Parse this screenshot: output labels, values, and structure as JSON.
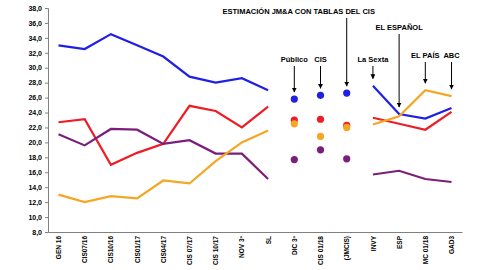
{
  "chart_data": {
    "type": "line",
    "categories": [
      "GEN 16",
      "CIS07/16",
      "CIS10/16",
      "CIS01/17",
      "CIS04/17",
      "CIS 07/17",
      "CIS 10/17",
      "NOV 3º",
      "SL",
      "DIC 3º",
      "CIS 01/18",
      "(JMCIS)",
      "INVY",
      "ESP",
      "MC 01/18",
      "GAD3"
    ],
    "ylim": [
      8,
      38
    ],
    "yticks": [
      {
        "value": 8,
        "label": "8,0"
      },
      {
        "value": 10,
        "label": "10,0"
      },
      {
        "value": 12,
        "label": "12,0"
      },
      {
        "value": 14,
        "label": "14,0"
      },
      {
        "value": 16,
        "label": "16,0"
      },
      {
        "value": 18,
        "label": "18,0"
      },
      {
        "value": 20,
        "label": "20,0"
      },
      {
        "value": 22,
        "label": "22,0"
      },
      {
        "value": 24,
        "label": "24,0"
      },
      {
        "value": 26,
        "label": "26,0"
      },
      {
        "value": 28,
        "label": "28,0"
      },
      {
        "value": 30,
        "label": "30,0"
      },
      {
        "value": 32,
        "label": "32,0"
      },
      {
        "value": 34,
        "label": "34,0"
      },
      {
        "value": 36,
        "label": "36,0"
      },
      {
        "value": 38,
        "label": "38,0"
      }
    ],
    "series": [
      {
        "color": "#1f1fe6",
        "values": [
          33.0,
          32.5,
          34.5,
          33.0,
          31.5,
          28.8,
          28.0,
          28.6,
          27.0,
          null,
          null,
          null,
          27.6,
          23.8,
          23.2,
          24.6
        ]
      },
      {
        "color": "#ee1c25",
        "values": [
          22.7,
          23.1,
          17.0,
          18.6,
          19.8,
          24.9,
          24.2,
          22.0,
          24.8,
          null,
          null,
          null,
          23.3,
          22.5,
          21.7,
          24.1
        ]
      },
      {
        "color": "#7b1e7a",
        "values": [
          21.1,
          19.6,
          21.8,
          21.7,
          19.8,
          20.3,
          18.5,
          18.5,
          15.1,
          null,
          null,
          null,
          15.7,
          16.2,
          15.1,
          14.7
        ]
      },
      {
        "color": "#f5a623",
        "values": [
          13.0,
          12.0,
          12.8,
          12.5,
          14.9,
          14.5,
          17.5,
          20.0,
          21.6,
          null,
          null,
          null,
          22.4,
          23.5,
          27.0,
          26.2
        ]
      },
      {
        "type": "scatter",
        "marker": "circle",
        "color": "#1f1fe6",
        "values": [
          null,
          null,
          null,
          null,
          null,
          null,
          null,
          null,
          null,
          25.8,
          26.3,
          26.6,
          null,
          null,
          null,
          null
        ]
      },
      {
        "type": "scatter",
        "marker": "circle",
        "color": "#ee1c25",
        "values": [
          null,
          null,
          null,
          null,
          null,
          null,
          null,
          null,
          null,
          23.0,
          23.1,
          22.3,
          null,
          null,
          null,
          null
        ]
      },
      {
        "type": "scatter",
        "marker": "circle",
        "color": "#7b1e7a",
        "values": [
          null,
          null,
          null,
          null,
          null,
          null,
          null,
          null,
          null,
          17.7,
          19.0,
          17.8,
          null,
          null,
          null,
          null
        ]
      },
      {
        "type": "scatter",
        "marker": "circle",
        "color": "#f5a623",
        "values": [
          null,
          null,
          null,
          null,
          null,
          null,
          null,
          null,
          null,
          22.5,
          20.8,
          22.0,
          null,
          null,
          null,
          null
        ]
      }
    ],
    "annotations": [
      {
        "text": "ESTIMACIÓN JM&A CON TABLAS DEL CIS",
        "category": "(JMCIS)"
      },
      {
        "text": "Público",
        "category": "DIC 3º"
      },
      {
        "text": "CIS",
        "category": "CIS 01/18"
      },
      {
        "text": "La Sexta",
        "category": "INVY"
      },
      {
        "text": "EL ESPAÑOL",
        "category": "ESP"
      },
      {
        "text": "EL PAÍS",
        "category": "MC 01/18"
      },
      {
        "text": "ABC",
        "category": "GAD3"
      }
    ]
  }
}
